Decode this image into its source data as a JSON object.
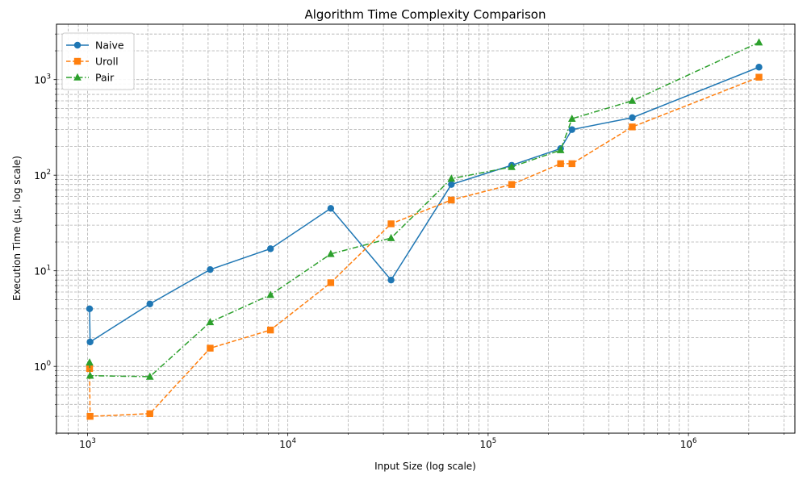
{
  "chart_data": {
    "type": "line",
    "title": "Algorithm Time Complexity Comparison",
    "xlabel": "Input Size (log scale)",
    "ylabel": "Execution Time (µs, log scale)",
    "xscale": "log",
    "yscale": "log",
    "xlim": [
      700,
      3400000
    ],
    "ylim": [
      0.2,
      3800
    ],
    "x_ticks": [
      {
        "value": 1000,
        "base": "10",
        "exp": "3"
      },
      {
        "value": 10000,
        "base": "10",
        "exp": "4"
      },
      {
        "value": 100000,
        "base": "10",
        "exp": "5"
      },
      {
        "value": 1000000,
        "base": "10",
        "exp": "6"
      }
    ],
    "y_ticks": [
      {
        "value": 1,
        "base": "10",
        "exp": "0"
      },
      {
        "value": 10,
        "base": "10",
        "exp": "1"
      },
      {
        "value": 100,
        "base": "10",
        "exp": "2"
      },
      {
        "value": 1000,
        "base": "10",
        "exp": "3"
      }
    ],
    "grid": "both (major and minor), dashed",
    "legend_position": "top-left",
    "series": [
      {
        "name": "Naive",
        "color": "#1f77b4",
        "linestyle": "solid",
        "marker": "circle",
        "x": [
          1024,
          1030,
          2048,
          4096,
          8192,
          16384,
          32768,
          65536,
          131072,
          230000,
          262144,
          524288,
          2250000
        ],
        "y": [
          4.0,
          1.8,
          4.5,
          10.3,
          17.0,
          45.0,
          8.0,
          80.0,
          127.0,
          190.0,
          300.0,
          400.0,
          1350.0
        ]
      },
      {
        "name": "Uroll",
        "color": "#ff7f0e",
        "linestyle": "dashed",
        "marker": "square",
        "x": [
          1024,
          1030,
          2048,
          4096,
          8192,
          16384,
          32768,
          65536,
          131072,
          230000,
          262144,
          524288,
          2250000
        ],
        "y": [
          0.95,
          0.3,
          0.32,
          1.55,
          2.4,
          7.5,
          31.0,
          55.0,
          80.0,
          132.0,
          132.0,
          320.0,
          1060.0
        ]
      },
      {
        "name": "Pair",
        "color": "#2ca02c",
        "linestyle": "dashdot",
        "marker": "triangle",
        "x": [
          1024,
          1030,
          2048,
          4096,
          8192,
          16384,
          32768,
          65536,
          131072,
          230000,
          262144,
          524288,
          2250000
        ],
        "y": [
          1.1,
          0.8,
          0.78,
          2.9,
          5.6,
          15.0,
          22.0,
          92.0,
          122.0,
          183.0,
          390.0,
          600.0,
          2450.0
        ]
      }
    ]
  }
}
